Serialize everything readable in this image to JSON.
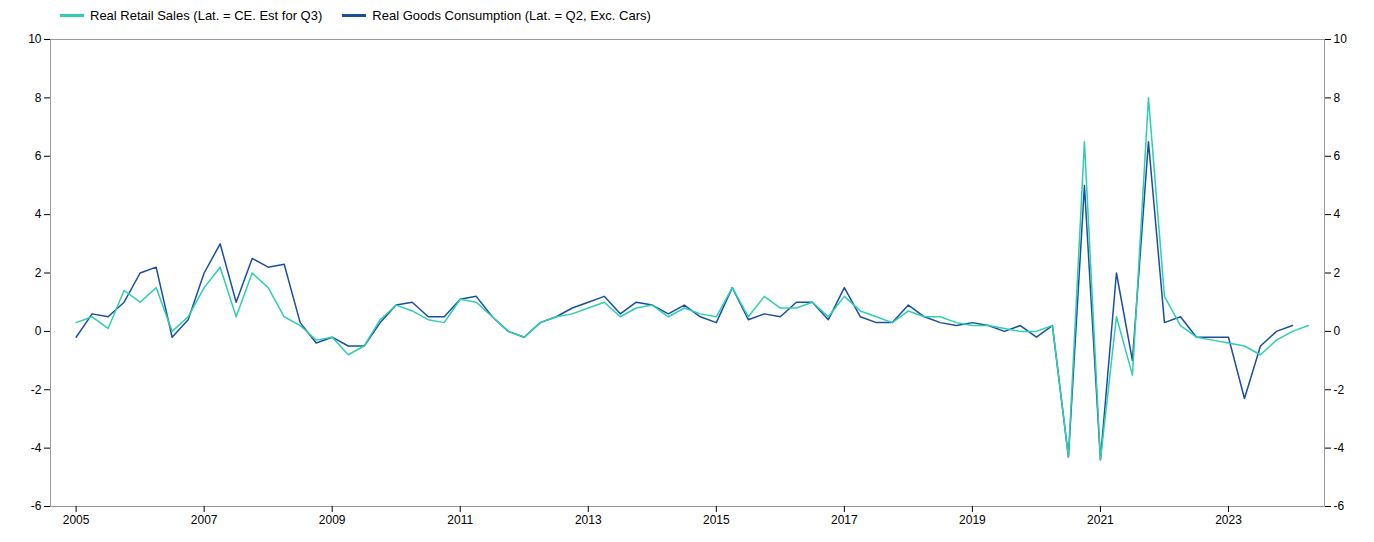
{
  "chart_data": {
    "type": "line",
    "xlim": [
      2004.6,
      2024.5
    ],
    "xticks": [
      2005,
      2007,
      2009,
      2011,
      2013,
      2015,
      2017,
      2019,
      2021,
      2023
    ],
    "ylim": [
      -6,
      10
    ],
    "yticks": [
      -6,
      -4,
      -2,
      0,
      2,
      4,
      6,
      8,
      10
    ],
    "grid": false,
    "legend": "upper left",
    "series": [
      {
        "name": "Real Retail Sales (Lat. = CE. Est for Q3)",
        "color": "#2ecfb0",
        "x": [
          2005.0,
          2005.25,
          2005.5,
          2005.75,
          2006.0,
          2006.25,
          2006.5,
          2006.75,
          2007.0,
          2007.25,
          2007.5,
          2007.75,
          2008.0,
          2008.25,
          2008.5,
          2008.75,
          2009.0,
          2009.25,
          2009.5,
          2009.75,
          2010.0,
          2010.25,
          2010.5,
          2010.75,
          2011.0,
          2011.25,
          2011.5,
          2011.75,
          2012.0,
          2012.25,
          2012.5,
          2012.75,
          2013.0,
          2013.25,
          2013.5,
          2013.75,
          2014.0,
          2014.25,
          2014.5,
          2014.75,
          2015.0,
          2015.25,
          2015.5,
          2015.75,
          2016.0,
          2016.25,
          2016.5,
          2016.75,
          2017.0,
          2017.25,
          2017.5,
          2017.75,
          2018.0,
          2018.25,
          2018.5,
          2018.75,
          2019.0,
          2019.25,
          2019.5,
          2019.75,
          2020.0,
          2020.25,
          2020.5,
          2020.75,
          2021.0,
          2021.25,
          2021.5,
          2021.75,
          2022.0,
          2022.25,
          2022.5,
          2022.75,
          2023.0,
          2023.25,
          2023.5,
          2023.75,
          2024.0,
          2024.25
        ],
        "values": [
          0.3,
          0.5,
          0.1,
          1.4,
          1.0,
          1.5,
          0.0,
          0.5,
          1.5,
          2.2,
          0.5,
          2.0,
          1.5,
          0.5,
          0.2,
          -0.3,
          -0.2,
          -0.8,
          -0.5,
          0.4,
          0.9,
          0.7,
          0.4,
          0.3,
          1.1,
          1.0,
          0.5,
          0.0,
          -0.2,
          0.3,
          0.5,
          0.6,
          0.8,
          1.0,
          0.5,
          0.8,
          0.9,
          0.5,
          0.8,
          0.6,
          0.5,
          1.5,
          0.5,
          1.2,
          0.8,
          0.8,
          1.0,
          0.5,
          1.2,
          0.7,
          0.5,
          0.3,
          0.7,
          0.5,
          0.5,
          0.3,
          0.2,
          0.2,
          0.1,
          0.0,
          0.0,
          0.2,
          -4.3,
          6.5,
          -4.4,
          0.5,
          -1.5,
          8.0,
          1.2,
          0.2,
          -0.2,
          -0.3,
          -0.4,
          -0.5,
          -0.8,
          -0.3,
          0.0,
          0.2
        ]
      },
      {
        "name": "Real Goods Consumption (Lat. = Q2, Exc. Cars)",
        "color": "#1a4f9f",
        "x": [
          2005.0,
          2005.25,
          2005.5,
          2005.75,
          2006.0,
          2006.25,
          2006.5,
          2006.75,
          2007.0,
          2007.25,
          2007.5,
          2007.75,
          2008.0,
          2008.25,
          2008.5,
          2008.75,
          2009.0,
          2009.25,
          2009.5,
          2009.75,
          2010.0,
          2010.25,
          2010.5,
          2010.75,
          2011.0,
          2011.25,
          2011.5,
          2011.75,
          2012.0,
          2012.25,
          2012.5,
          2012.75,
          2013.0,
          2013.25,
          2013.5,
          2013.75,
          2014.0,
          2014.25,
          2014.5,
          2014.75,
          2015.0,
          2015.25,
          2015.5,
          2015.75,
          2016.0,
          2016.25,
          2016.5,
          2016.75,
          2017.0,
          2017.25,
          2017.5,
          2017.75,
          2018.0,
          2018.25,
          2018.5,
          2018.75,
          2019.0,
          2019.25,
          2019.5,
          2019.75,
          2020.0,
          2020.25,
          2020.5,
          2020.75,
          2021.0,
          2021.25,
          2021.5,
          2021.75,
          2022.0,
          2022.25,
          2022.5,
          2022.75,
          2023.0,
          2023.25,
          2023.5,
          2023.75,
          2024.0
        ],
        "values": [
          -0.2,
          0.6,
          0.5,
          1.0,
          2.0,
          2.2,
          -0.2,
          0.4,
          2.0,
          3.0,
          1.0,
          2.5,
          2.2,
          2.3,
          0.3,
          -0.4,
          -0.2,
          -0.5,
          -0.5,
          0.3,
          0.9,
          1.0,
          0.5,
          0.5,
          1.1,
          1.2,
          0.5,
          0.0,
          -0.2,
          0.3,
          0.5,
          0.8,
          1.0,
          1.2,
          0.6,
          1.0,
          0.9,
          0.6,
          0.9,
          0.5,
          0.3,
          1.5,
          0.4,
          0.6,
          0.5,
          1.0,
          1.0,
          0.4,
          1.5,
          0.5,
          0.3,
          0.3,
          0.9,
          0.5,
          0.3,
          0.2,
          0.3,
          0.2,
          0.0,
          0.2,
          -0.2,
          0.2,
          -4.3,
          5.0,
          -4.4,
          2.0,
          -1.0,
          6.5,
          0.3,
          0.5,
          -0.2,
          -0.2,
          -0.2,
          -2.3,
          -0.5,
          0.0,
          0.2
        ]
      }
    ]
  }
}
